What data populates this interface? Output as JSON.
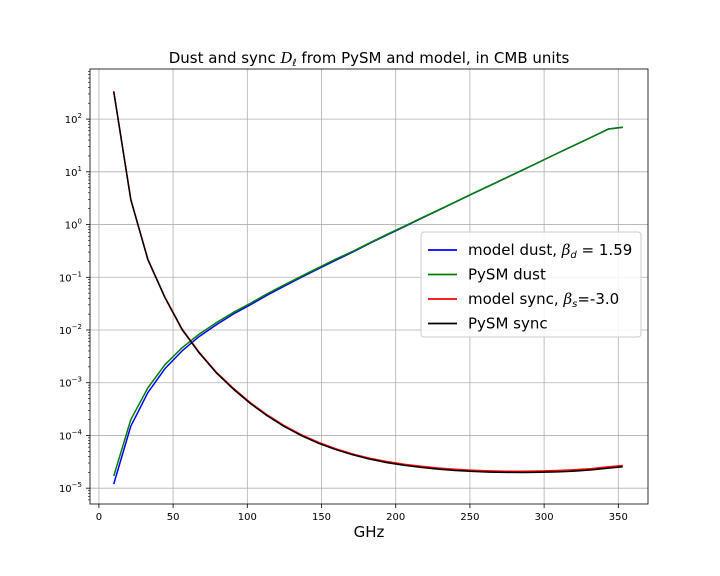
{
  "chart_data": {
    "type": "line",
    "title_prefix": "Dust and sync ",
    "title_symbol": "D",
    "title_subscript": "ℓ",
    "title_suffix": " from PySM and model, in CMB units",
    "xlabel": "GHz",
    "ylabel": "",
    "xlim": [
      -6,
      370
    ],
    "ylim_log10": [
      -5.3,
      2.95
    ],
    "yscale": "log",
    "grid": true,
    "legend_position": "center-right",
    "x_ticks": [
      0,
      50,
      100,
      150,
      200,
      250,
      300,
      350
    ],
    "x_tick_labels": [
      "0",
      "50",
      "100",
      "150",
      "200",
      "250",
      "300",
      "350"
    ],
    "y_ticks_log10": [
      -5,
      -4,
      -3,
      -2,
      -1,
      0,
      1,
      2
    ],
    "y_tick_labels": [
      {
        "base": "10",
        "exp": "−5"
      },
      {
        "base": "10",
        "exp": "−4"
      },
      {
        "base": "10",
        "exp": "−3"
      },
      {
        "base": "10",
        "exp": "−2"
      },
      {
        "base": "10",
        "exp": "−1"
      },
      {
        "base": "10",
        "exp": "0"
      },
      {
        "base": "10",
        "exp": "1"
      },
      {
        "base": "10",
        "exp": "2"
      }
    ],
    "x": [
      10,
      21.5,
      33,
      44.5,
      56,
      67.5,
      79,
      90.5,
      102,
      113.5,
      125,
      136.5,
      148,
      159.5,
      171,
      182.5,
      194,
      205.5,
      217,
      228.5,
      240,
      251.5,
      263,
      274.5,
      286,
      297.5,
      309,
      320.5,
      332,
      343.5,
      353
    ],
    "series": [
      {
        "name_text": "model dust, ",
        "name_symbol": "β",
        "name_subscript": "d",
        "name_suffix": " = 1.59",
        "color": "#0000ff",
        "values": [
          1.2e-05,
          0.00015,
          0.00065,
          0.00185,
          0.004,
          0.0075,
          0.0125,
          0.02,
          0.03,
          0.046,
          0.068,
          0.1,
          0.145,
          0.21,
          0.3,
          0.44,
          0.63,
          0.9,
          1.3,
          1.85,
          2.65,
          3.8,
          5.4,
          7.7,
          11.0,
          15.7,
          22.5,
          32.0,
          45.5,
          65.0,
          70.0
        ]
      },
      {
        "name_text": "PySM dust",
        "name_symbol": "",
        "name_subscript": "",
        "name_suffix": "",
        "color": "#008000",
        "values": [
          1.7e-05,
          0.0002,
          0.0008,
          0.0022,
          0.0046,
          0.0083,
          0.0137,
          0.0215,
          0.032,
          0.049,
          0.072,
          0.105,
          0.152,
          0.22,
          0.31,
          0.45,
          0.65,
          0.92,
          1.32,
          1.87,
          2.67,
          3.82,
          5.42,
          7.72,
          11.0,
          15.7,
          22.5,
          32.0,
          45.5,
          65.0,
          70.0
        ]
      },
      {
        "name_text": "model sync, ",
        "name_symbol": "β",
        "name_subscript": "s",
        "name_suffix": "=-3.0",
        "color": "#ff0000",
        "values": [
          340,
          3.0,
          0.22,
          0.042,
          0.0105,
          0.0038,
          0.0016,
          0.00079,
          0.00042,
          0.000245,
          0.000153,
          0.000103,
          7.4e-05,
          5.6e-05,
          4.45e-05,
          3.7e-05,
          3.2e-05,
          2.85e-05,
          2.6e-05,
          2.42e-05,
          2.28e-05,
          2.19e-05,
          2.13e-05,
          2.1e-05,
          2.1e-05,
          2.12e-05,
          2.17e-05,
          2.24e-05,
          2.35e-05,
          2.55e-05,
          2.7e-05
        ]
      },
      {
        "name_text": "PySM sync",
        "name_symbol": "",
        "name_subscript": "",
        "name_suffix": "",
        "color": "#000000",
        "values": [
          330,
          2.95,
          0.215,
          0.041,
          0.0102,
          0.0037,
          0.00155,
          0.00076,
          0.000405,
          0.000235,
          0.000147,
          9.9e-05,
          7.1e-05,
          5.4e-05,
          4.3e-05,
          3.55e-05,
          3.05e-05,
          2.72e-05,
          2.48e-05,
          2.3e-05,
          2.17e-05,
          2.08e-05,
          2.02e-05,
          1.99e-05,
          1.98e-05,
          2e-05,
          2.04e-05,
          2.11e-05,
          2.22e-05,
          2.4e-05,
          2.55e-05
        ]
      }
    ]
  }
}
